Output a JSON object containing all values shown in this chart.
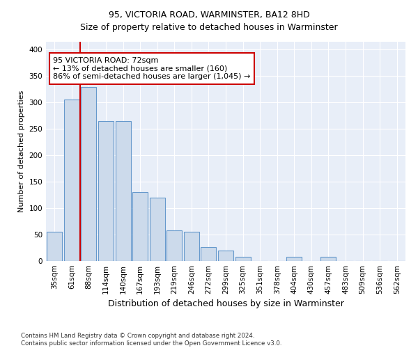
{
  "title1": "95, VICTORIA ROAD, WARMINSTER, BA12 8HD",
  "title2": "Size of property relative to detached houses in Warminster",
  "xlabel": "Distribution of detached houses by size in Warminster",
  "ylabel": "Number of detached properties",
  "bin_labels": [
    "35sqm",
    "61sqm",
    "88sqm",
    "114sqm",
    "140sqm",
    "167sqm",
    "193sqm",
    "219sqm",
    "246sqm",
    "272sqm",
    "299sqm",
    "325sqm",
    "351sqm",
    "378sqm",
    "404sqm",
    "430sqm",
    "457sqm",
    "483sqm",
    "509sqm",
    "536sqm",
    "562sqm"
  ],
  "bar_heights": [
    55,
    305,
    330,
    265,
    265,
    130,
    120,
    58,
    55,
    27,
    20,
    8,
    0,
    0,
    8,
    0,
    8,
    0,
    0,
    0,
    0
  ],
  "bar_color": "#ccdaeb",
  "bar_edge_color": "#6699cc",
  "property_line_x": 1.5,
  "property_line_color": "#cc0000",
  "annotation_text": "95 VICTORIA ROAD: 72sqm\n← 13% of detached houses are smaller (160)\n86% of semi-detached houses are larger (1,045) →",
  "annotation_box_facecolor": "#ffffff",
  "annotation_box_edgecolor": "#cc0000",
  "ylim": [
    0,
    415
  ],
  "yticks": [
    0,
    50,
    100,
    150,
    200,
    250,
    300,
    350,
    400
  ],
  "footer_line1": "Contains HM Land Registry data © Crown copyright and database right 2024.",
  "footer_line2": "Contains public sector information licensed under the Open Government Licence v3.0.",
  "fig_background_color": "#ffffff",
  "plot_background_color": "#e8eef8",
  "grid_color": "#ffffff",
  "title1_fontsize": 9,
  "title2_fontsize": 9,
  "xlabel_fontsize": 9,
  "ylabel_fontsize": 8,
  "tick_fontsize": 7.5
}
